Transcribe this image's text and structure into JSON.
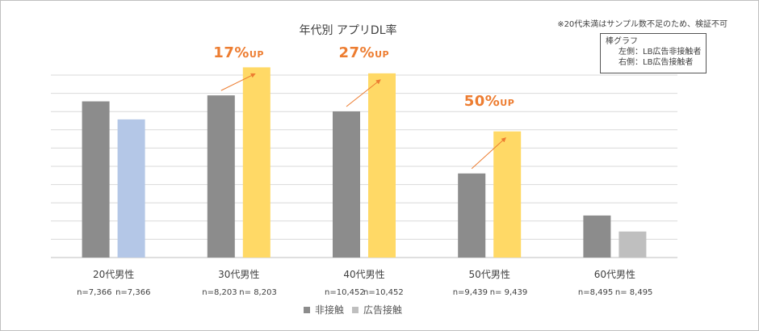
{
  "chart_data": {
    "type": "bar",
    "title": "年代別 アプリDL率",
    "categories": [
      "20代男性",
      "30代男性",
      "40代男性",
      "50代男性",
      "60代男性"
    ],
    "series": [
      {
        "name": "非接触",
        "values": [
          7.8,
          8.1,
          7.3,
          4.2,
          2.1
        ]
      },
      {
        "name": "広告接触",
        "values": [
          6.9,
          9.5,
          9.2,
          6.3,
          1.3
        ]
      }
    ],
    "ylim": [
      0,
      10
    ],
    "grid": true,
    "sample_labels": [
      [
        "n=7,366",
        "n=7,366"
      ],
      [
        "n=8,203",
        "n= 8,203"
      ],
      [
        "n=10,452",
        "n=10,452"
      ],
      [
        "n=9,439",
        "n= 9,439"
      ],
      [
        "n=8,495",
        "n= 8,495"
      ]
    ],
    "uplift_labels": [
      {
        "category": "30代男性",
        "value": "17%",
        "suffix": "UP"
      },
      {
        "category": "40代男性",
        "value": "27%",
        "suffix": "UP"
      },
      {
        "category": "50代男性",
        "value": "50%",
        "suffix": "UP"
      }
    ],
    "colors": {
      "non_contact": "#8c8c8c",
      "contact_highlight": "#ffd966",
      "contact_20s": "#b4c7e7",
      "contact_60s": "#bfbfbf",
      "uplift": "#ed7d31",
      "grid": "#d9d9d9"
    }
  },
  "note": "※20代未満はサンプル数不足のため、検証不可",
  "legend_box": {
    "title": "棒グラフ",
    "left": "左側：LB広告非接触者",
    "right": "右側：LB広告接触者"
  },
  "bottom_legend": {
    "item1": "非接触",
    "item2": "広告接触"
  }
}
